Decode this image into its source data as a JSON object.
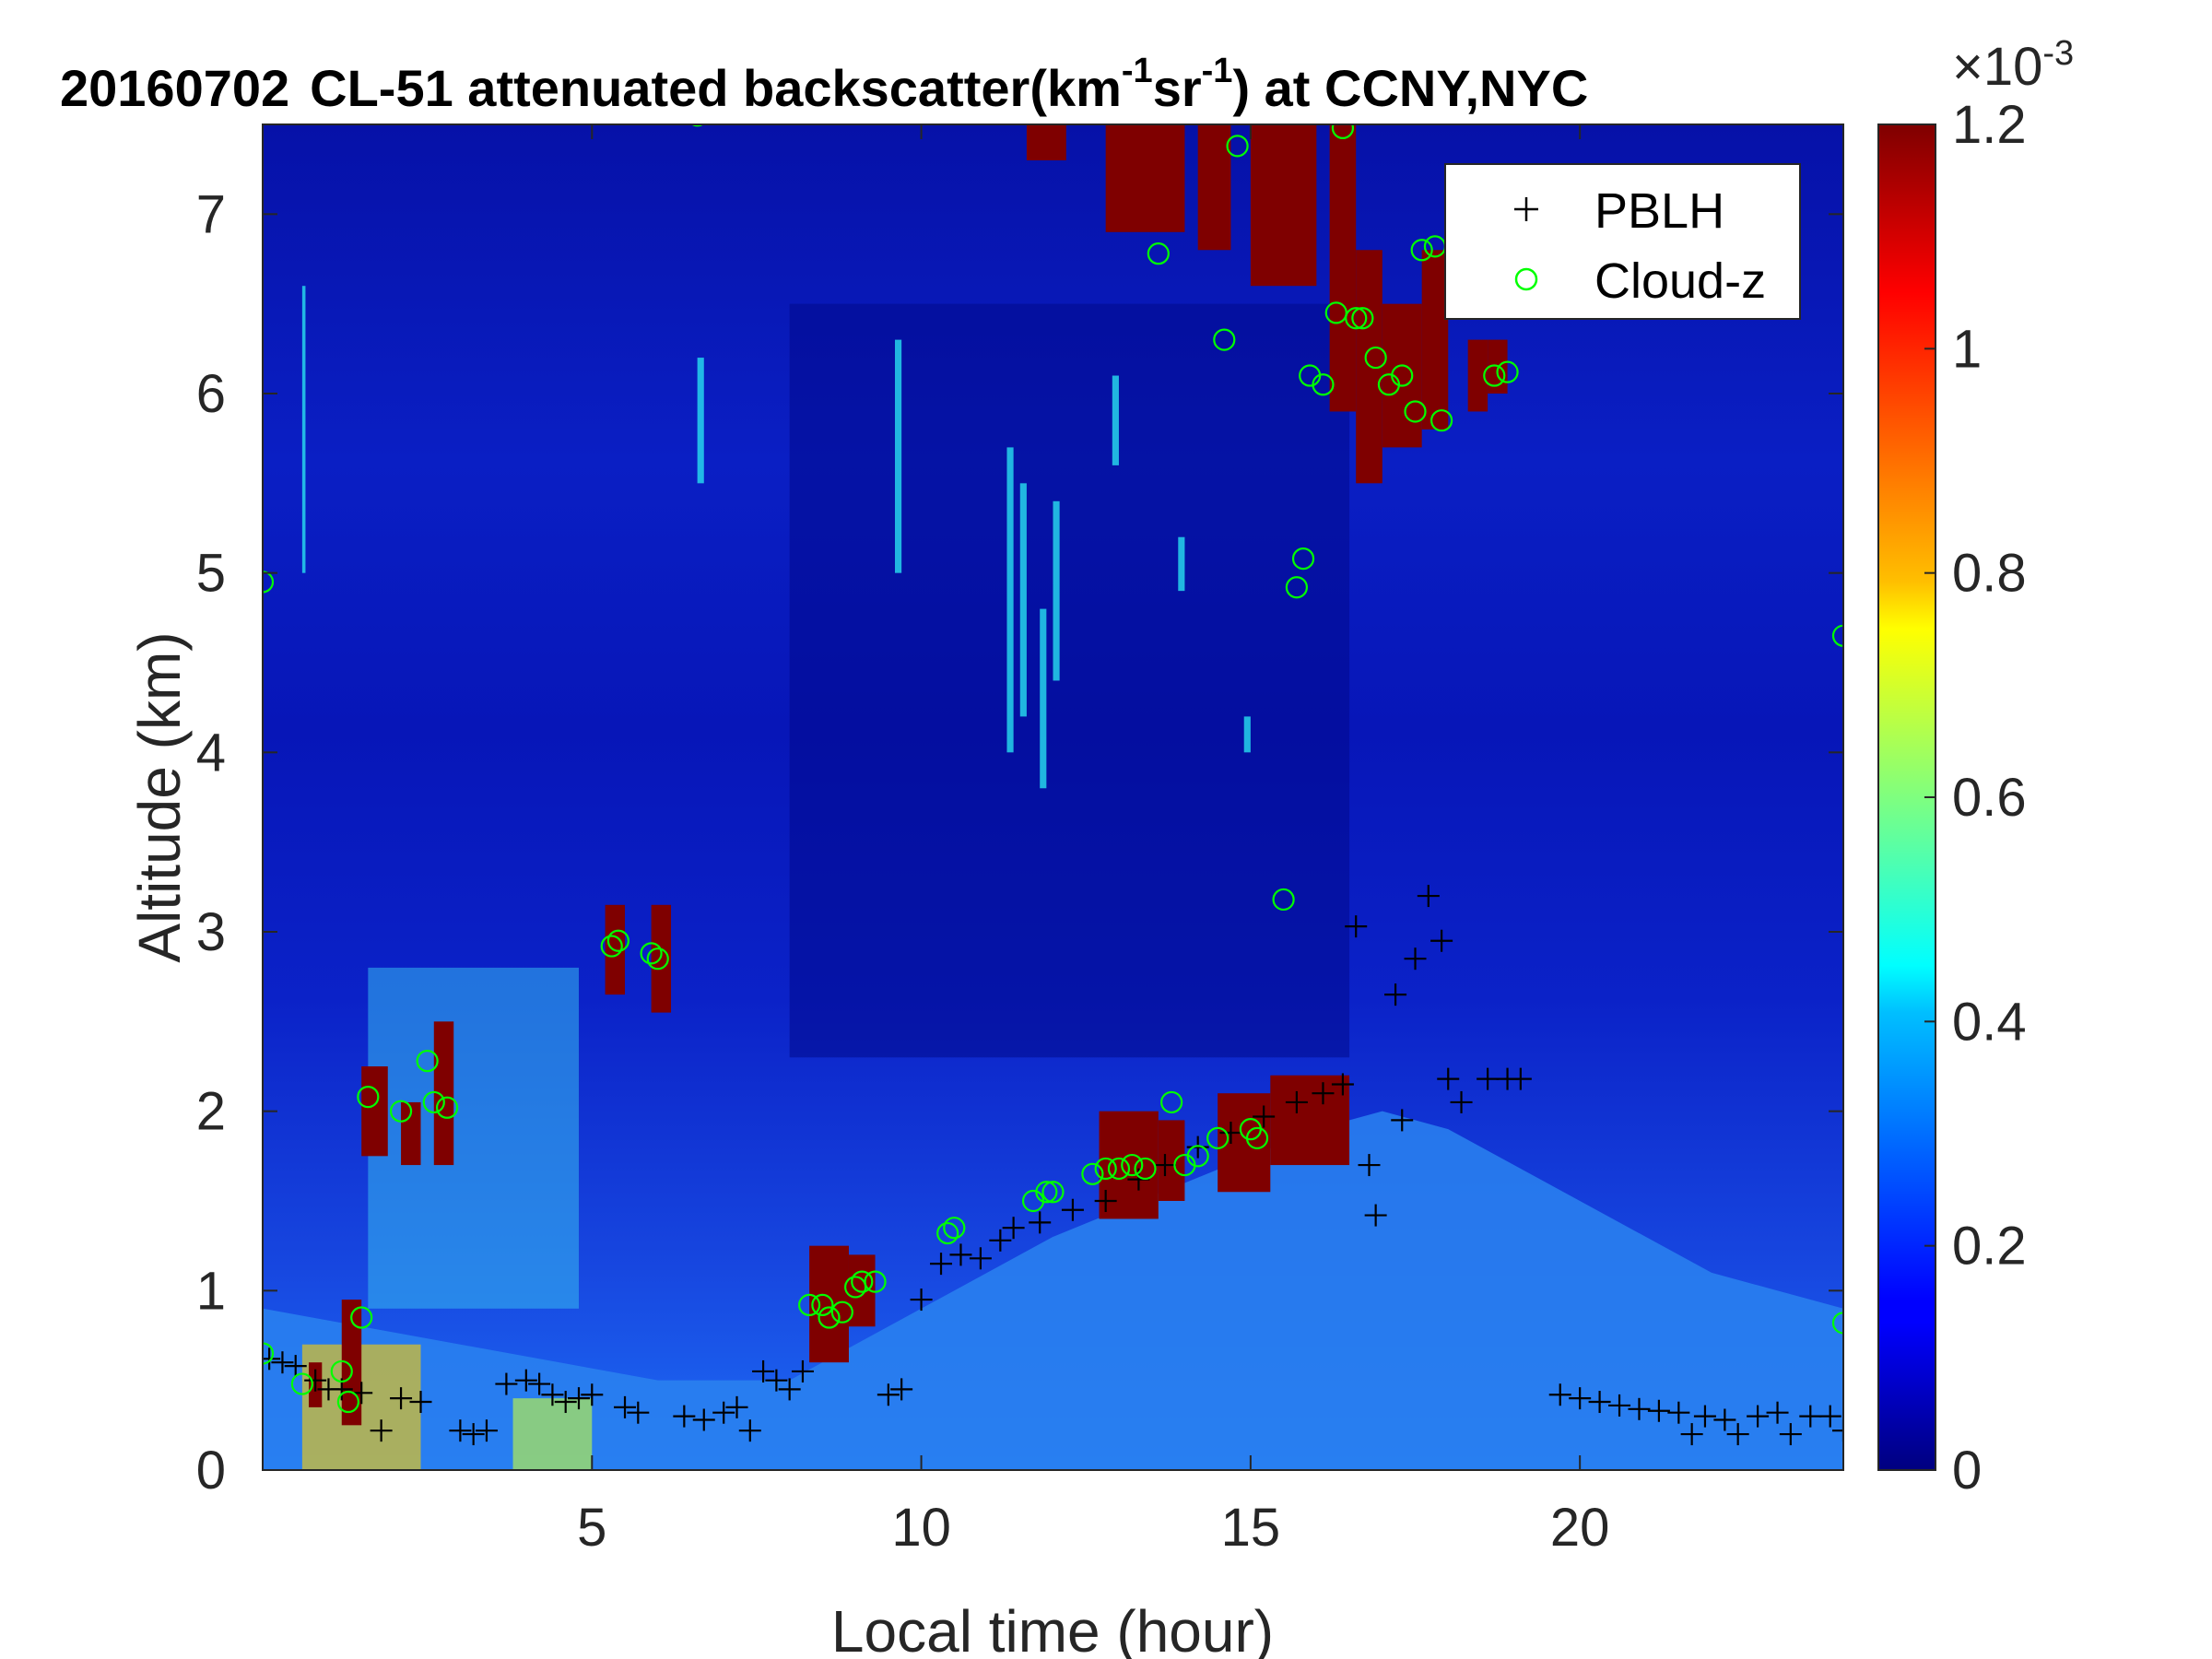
{
  "chart_data": {
    "type": "heatmap",
    "title_parts": {
      "date": "20160702",
      "main": "CL-51 attenuated backscatter(km",
      "sup1": "-1",
      "mid": "sr",
      "sup2": "-1",
      "end": ") at CCNY,NYC"
    },
    "xlabel": "Local time (hour)",
    "ylabel": "Altitude (km)",
    "xlim": [
      0,
      24
    ],
    "ylim": [
      0,
      7.5
    ],
    "xticks": [
      5,
      10,
      15,
      20
    ],
    "yticks": [
      0,
      1,
      2,
      3,
      4,
      5,
      6,
      7
    ],
    "colorbar": {
      "colormap": "jet",
      "clim": [
        0,
        1.2
      ],
      "ticks": [
        "0",
        "0.2",
        "0.4",
        "0.6",
        "0.8",
        "1",
        "1.2"
      ],
      "tick_values": [
        0,
        0.2,
        0.4,
        0.6,
        0.8,
        1.0,
        1.2
      ],
      "exponent_label": "×10",
      "exponent": "-3"
    },
    "legend": {
      "location": "top-right",
      "entries": [
        {
          "label": "PBLH",
          "marker": "+",
          "color": "#000000"
        },
        {
          "label": "Cloud-z",
          "marker": "o",
          "color": "#00ff00"
        }
      ]
    },
    "series": [
      {
        "name": "PBLH",
        "marker": "+",
        "color": "#000000",
        "points": [
          [
            0.1,
            0.62
          ],
          [
            0.3,
            0.6
          ],
          [
            0.5,
            0.58
          ],
          [
            0.8,
            0.5
          ],
          [
            1.0,
            0.45
          ],
          [
            1.2,
            0.45
          ],
          [
            1.5,
            0.43
          ],
          [
            1.8,
            0.22
          ],
          [
            2.1,
            0.4
          ],
          [
            2.4,
            0.38
          ],
          [
            3.0,
            0.22
          ],
          [
            3.2,
            0.2
          ],
          [
            3.4,
            0.22
          ],
          [
            3.7,
            0.48
          ],
          [
            4.0,
            0.5
          ],
          [
            4.2,
            0.48
          ],
          [
            4.4,
            0.42
          ],
          [
            4.6,
            0.38
          ],
          [
            4.8,
            0.4
          ],
          [
            5.0,
            0.42
          ],
          [
            5.5,
            0.35
          ],
          [
            5.7,
            0.32
          ],
          [
            6.4,
            0.3
          ],
          [
            6.7,
            0.28
          ],
          [
            7.0,
            0.32
          ],
          [
            7.2,
            0.35
          ],
          [
            7.4,
            0.22
          ],
          [
            7.6,
            0.55
          ],
          [
            7.8,
            0.5
          ],
          [
            8.0,
            0.45
          ],
          [
            8.2,
            0.55
          ],
          [
            9.5,
            0.42
          ],
          [
            9.7,
            0.45
          ],
          [
            10.0,
            0.95
          ],
          [
            10.3,
            1.15
          ],
          [
            10.6,
            1.2
          ],
          [
            10.9,
            1.18
          ],
          [
            11.2,
            1.28
          ],
          [
            11.4,
            1.35
          ],
          [
            11.8,
            1.38
          ],
          [
            12.3,
            1.45
          ],
          [
            12.8,
            1.5
          ],
          [
            13.3,
            1.62
          ],
          [
            13.7,
            1.7
          ],
          [
            14.2,
            1.8
          ],
          [
            14.7,
            1.88
          ],
          [
            15.2,
            1.97
          ],
          [
            15.7,
            2.05
          ],
          [
            16.1,
            2.1
          ],
          [
            16.4,
            2.15
          ],
          [
            16.6,
            3.03
          ],
          [
            16.8,
            1.7
          ],
          [
            16.9,
            1.42
          ],
          [
            17.2,
            2.65
          ],
          [
            17.3,
            1.95
          ],
          [
            17.5,
            2.85
          ],
          [
            17.7,
            3.2
          ],
          [
            17.9,
            2.95
          ],
          [
            18.0,
            2.18
          ],
          [
            18.2,
            2.05
          ],
          [
            18.6,
            2.18
          ],
          [
            18.9,
            2.18
          ],
          [
            19.1,
            2.18
          ],
          [
            19.7,
            0.42
          ],
          [
            20.0,
            0.4
          ],
          [
            20.3,
            0.38
          ],
          [
            20.6,
            0.36
          ],
          [
            20.9,
            0.34
          ],
          [
            21.2,
            0.33
          ],
          [
            21.5,
            0.32
          ],
          [
            21.7,
            0.2
          ],
          [
            21.9,
            0.3
          ],
          [
            22.2,
            0.28
          ],
          [
            22.4,
            0.2
          ],
          [
            22.7,
            0.3
          ],
          [
            23.0,
            0.32
          ],
          [
            23.2,
            0.2
          ],
          [
            23.5,
            0.3
          ],
          [
            23.8,
            0.3
          ],
          [
            24.0,
            0.22
          ]
        ]
      },
      {
        "name": "Cloud-z",
        "marker": "o",
        "color": "#00ff00",
        "points": [
          [
            0.0,
            4.95
          ],
          [
            0.0,
            0.65
          ],
          [
            0.6,
            0.48
          ],
          [
            1.2,
            0.55
          ],
          [
            1.3,
            0.38
          ],
          [
            1.5,
            0.85
          ],
          [
            1.6,
            2.08
          ],
          [
            2.1,
            2.0
          ],
          [
            2.5,
            2.28
          ],
          [
            2.6,
            2.05
          ],
          [
            2.8,
            2.02
          ],
          [
            5.3,
            2.92
          ],
          [
            5.4,
            2.95
          ],
          [
            5.9,
            2.88
          ],
          [
            6.0,
            2.85
          ],
          [
            6.6,
            7.55
          ],
          [
            8.3,
            0.92
          ],
          [
            8.5,
            0.92
          ],
          [
            8.6,
            0.85
          ],
          [
            8.8,
            0.88
          ],
          [
            9.0,
            1.02
          ],
          [
            9.1,
            1.05
          ],
          [
            9.3,
            1.05
          ],
          [
            10.4,
            1.32
          ],
          [
            10.5,
            1.35
          ],
          [
            11.7,
            1.5
          ],
          [
            11.9,
            1.55
          ],
          [
            12.0,
            1.55
          ],
          [
            12.6,
            1.65
          ],
          [
            12.8,
            1.68
          ],
          [
            13.0,
            1.68
          ],
          [
            13.2,
            1.7
          ],
          [
            13.4,
            1.68
          ],
          [
            13.6,
            6.78
          ],
          [
            13.8,
            2.05
          ],
          [
            14.0,
            1.7
          ],
          [
            14.2,
            1.75
          ],
          [
            14.5,
            1.85
          ],
          [
            14.6,
            6.3
          ],
          [
            14.8,
            7.38
          ],
          [
            15.0,
            1.9
          ],
          [
            15.1,
            1.85
          ],
          [
            15.5,
            3.18
          ],
          [
            15.7,
            4.92
          ],
          [
            15.8,
            5.08
          ],
          [
            15.9,
            6.1
          ],
          [
            16.1,
            6.05
          ],
          [
            16.3,
            6.45
          ],
          [
            16.4,
            7.48
          ],
          [
            16.6,
            6.42
          ],
          [
            16.7,
            6.42
          ],
          [
            16.9,
            6.2
          ],
          [
            17.1,
            6.05
          ],
          [
            17.3,
            6.1
          ],
          [
            17.5,
            5.9
          ],
          [
            17.6,
            6.8
          ],
          [
            17.8,
            6.82
          ],
          [
            17.9,
            5.85
          ],
          [
            18.7,
            6.1
          ],
          [
            18.9,
            6.12
          ],
          [
            24.0,
            4.65
          ],
          [
            24.0,
            0.82
          ]
        ]
      }
    ]
  }
}
